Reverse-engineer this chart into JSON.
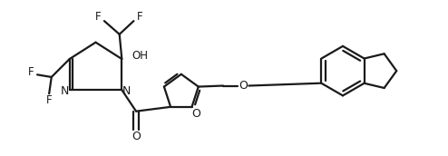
{
  "background_color": "#ffffff",
  "line_color": "#1a1a1a",
  "line_width": 1.6,
  "font_size": 8.5,
  "figsize": [
    4.94,
    1.72
  ],
  "dpi": 100,
  "xlim": [
    0,
    9.4
  ],
  "ylim": [
    0,
    3.2
  ]
}
